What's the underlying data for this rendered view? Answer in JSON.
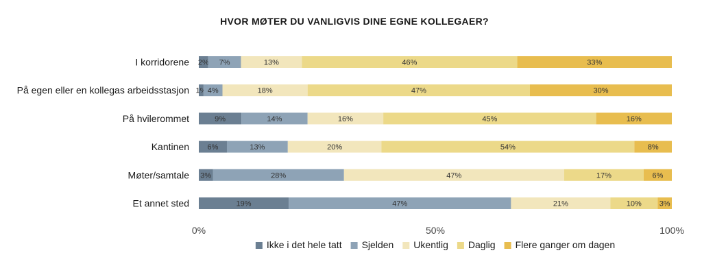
{
  "chart_data": {
    "type": "stacked-bar-horizontal",
    "title": "HVOR MØTER DU VANLIGVIS DINE EGNE KOLLEGAER?",
    "categories": [
      "I korridorene",
      "På egen eller en kollegas arbeidsstasjon",
      "På hvilerommet",
      "Kantinen",
      "Møter/samtale",
      "Et annet sted"
    ],
    "series": [
      {
        "name": "Ikke i det hele tatt",
        "color": "#6b7f92",
        "values": [
          2,
          1,
          9,
          6,
          3,
          19
        ]
      },
      {
        "name": "Sjelden",
        "color": "#8ea3b6",
        "values": [
          7,
          4,
          14,
          13,
          28,
          47
        ]
      },
      {
        "name": "Ukentlig",
        "color": "#f2e6bc",
        "values": [
          13,
          18,
          16,
          20,
          47,
          21
        ]
      },
      {
        "name": "Daglig",
        "color": "#ecd989",
        "values": [
          46,
          47,
          45,
          54,
          17,
          10
        ]
      },
      {
        "name": "Flere ganger om dagen",
        "color": "#e8bd4f",
        "values": [
          33,
          30,
          16,
          8,
          6,
          3
        ]
      }
    ],
    "value_suffix": "%",
    "xlim": [
      0,
      100
    ],
    "x_ticks": [
      {
        "value": 0,
        "label": "0%"
      },
      {
        "value": 50,
        "label": "50%"
      },
      {
        "value": 100,
        "label": "100%"
      }
    ],
    "legend_position": "bottom-center"
  }
}
